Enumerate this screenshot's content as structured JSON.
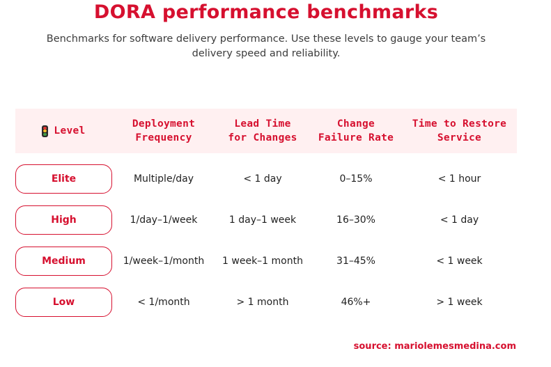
{
  "title": "DORA performance benchmarks",
  "subtitle_lines": [
    "Benchmarks for software delivery performance. Use these levels to gauge your team’s",
    "delivery speed and reliability."
  ],
  "icons": {
    "level": "traffic-light-icon"
  },
  "colors": {
    "accent": "#d6102f",
    "header_bg": "#fff0f1",
    "traffic_light": [
      "#e53935",
      "#fbc02d",
      "#43a047"
    ]
  },
  "table": {
    "headers": {
      "level": "Level",
      "deploy": [
        "Deployment",
        "Frequency"
      ],
      "lead": [
        "Lead Time",
        "for Changes"
      ],
      "cfr": [
        "Change",
        "Failure Rate"
      ],
      "restore": [
        "Time to Restore",
        "Service"
      ]
    },
    "rows": [
      {
        "level": "Elite",
        "deploy": "Multiple/day",
        "lead": "< 1 day",
        "cfr": "0–15%",
        "restore": "< 1 hour"
      },
      {
        "level": "High",
        "deploy": "1/day–1/week",
        "lead": "1 day–1 week",
        "cfr": "16–30%",
        "restore": "< 1 day"
      },
      {
        "level": "Medium",
        "deploy": "1/week–1/month",
        "lead": "1 week–1 month",
        "cfr": "31–45%",
        "restore": "< 1 week"
      },
      {
        "level": "Low",
        "deploy": "< 1/month",
        "lead": "> 1 month",
        "cfr": "46%+",
        "restore": "> 1 week"
      }
    ]
  },
  "source": "source: mariolemesmedina.com"
}
